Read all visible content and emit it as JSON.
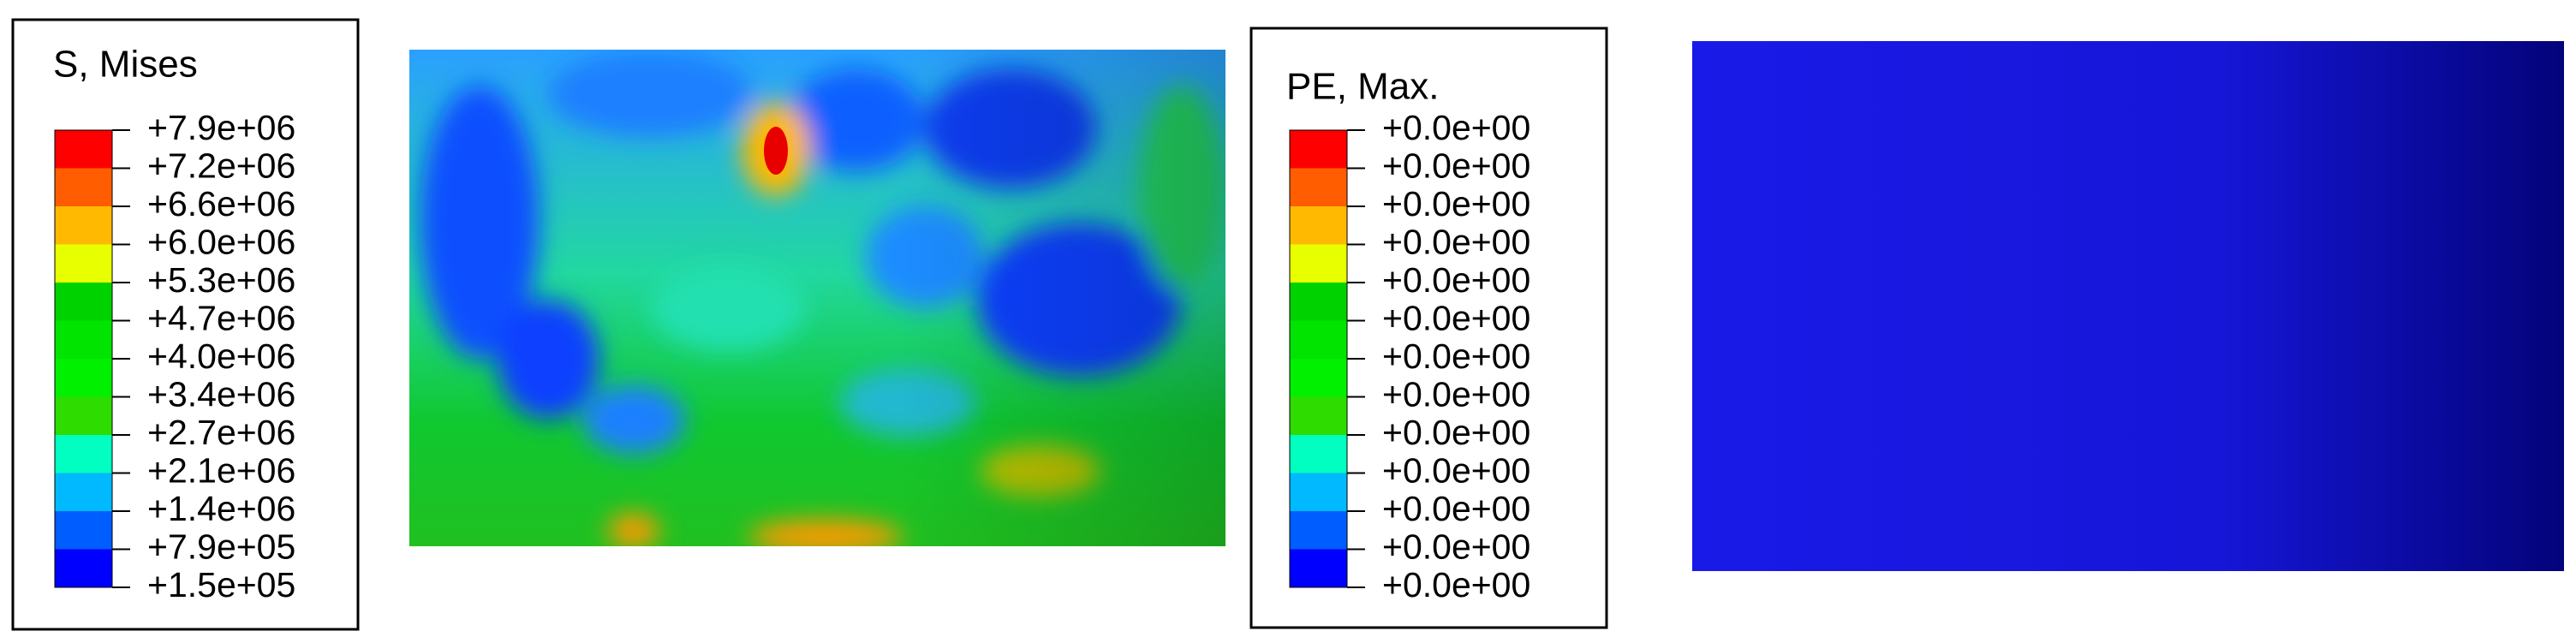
{
  "legends": [
    {
      "title": "S, Mises",
      "labels": [
        "+7.9e+06",
        "+7.2e+06",
        "+6.6e+06",
        "+6.0e+06",
        "+5.3e+06",
        "+4.7e+06",
        "+4.0e+06",
        "+3.4e+06",
        "+2.7e+06",
        "+2.1e+06",
        "+1.4e+06",
        "+7.9e+05",
        "+1.5e+05"
      ]
    },
    {
      "title": "PE, Max.",
      "labels": [
        "+0.0e+00",
        "+0.0e+00",
        "+0.0e+00",
        "+0.0e+00",
        "+0.0e+00",
        "+0.0e+00",
        "+0.0e+00",
        "+0.0e+00",
        "+0.0e+00",
        "+0.0e+00",
        "+0.0e+00",
        "+0.0e+00",
        "+0.0e+00"
      ]
    }
  ]
}
